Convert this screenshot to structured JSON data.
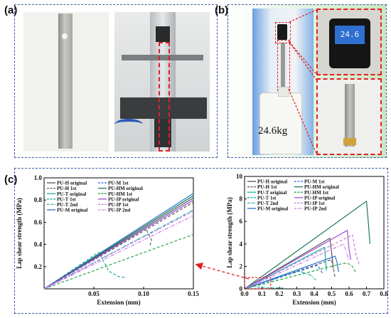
{
  "panel_labels": {
    "a": "(a)",
    "b": "(b)",
    "c": "(c)"
  },
  "panel_b": {
    "weight_label": "24.6kg",
    "scale_display": "24.6"
  },
  "colors": {
    "frame": "#3a58a8",
    "highlight": "#e02020",
    "arrow": "#e02020"
  },
  "chart_data": [
    {
      "type": "line",
      "xlabel": "Extension (mm)",
      "ylabel": "Lap shear strength (MPa)",
      "xlim": [
        0,
        0.15
      ],
      "ylim": [
        0,
        1.0
      ],
      "xticks": [
        0.05,
        0.1,
        0.15
      ],
      "yticks": [
        0.2,
        0.4,
        0.6,
        0.8,
        1.0
      ],
      "legend_position": "top-left",
      "series": [
        {
          "name": "PU-H original",
          "color": "#555555",
          "dash": "solid",
          "x": [
            0,
            0.15
          ],
          "y": [
            0,
            0.82
          ]
        },
        {
          "name": "PU-H 1st",
          "color": "#555555",
          "dash": "dashed",
          "x": [
            0,
            0.15
          ],
          "y": [
            0,
            0.78
          ]
        },
        {
          "name": "PU-T original",
          "color": "#19b0a0",
          "dash": "solid",
          "x": [
            0,
            0.15
          ],
          "y": [
            0,
            0.84
          ]
        },
        {
          "name": "PU-T 1st",
          "color": "#19b0a0",
          "dash": "dashed",
          "x": [
            0,
            0.055,
            0.065,
            0.075,
            0.083
          ],
          "y": [
            0,
            0.33,
            0.16,
            0.11,
            0.1
          ]
        },
        {
          "name": "PU-T 2nd",
          "color": "#19b0a0",
          "dash": "dashdot",
          "x": [
            0,
            0.15
          ],
          "y": [
            0,
            0.71
          ]
        },
        {
          "name": "PU-M original",
          "color": "#2a6fd6",
          "dash": "solid",
          "x": [
            0,
            0.15
          ],
          "y": [
            0,
            0.86
          ]
        },
        {
          "name": "PU-M 1st",
          "color": "#2a6fd6",
          "dash": "dashed",
          "x": [
            0,
            0.15
          ],
          "y": [
            0,
            0.8
          ]
        },
        {
          "name": "PU-HM original",
          "color": "#1e7a5a",
          "dash": "solid",
          "x": [
            0,
            0.15
          ],
          "y": [
            0,
            0.84
          ]
        },
        {
          "name": "PU-HM 1st",
          "color": "#2aa84a",
          "dash": "dashed",
          "x": [
            0,
            0.15
          ],
          "y": [
            0,
            0.49
          ]
        },
        {
          "name": "PU-IP original",
          "color": "#a04bd6",
          "dash": "solid",
          "x": [
            0,
            0.15
          ],
          "y": [
            0,
            0.8
          ]
        },
        {
          "name": "PU-IP 1st",
          "color": "#c77be6",
          "dash": "dashed",
          "x": [
            0,
            0.15
          ],
          "y": [
            0,
            0.7
          ]
        },
        {
          "name": "PU-IP 2nd",
          "color": "#c77be6",
          "dash": "dashdot",
          "x": [
            0,
            0.15
          ],
          "y": [
            0,
            0.66
          ]
        }
      ],
      "annotations": [
        {
          "series": "PU-H 1st",
          "x": [
            0.103,
            0.108,
            0.106
          ],
          "y": [
            0.53,
            0.44,
            0.38
          ]
        }
      ]
    },
    {
      "type": "line",
      "xlabel": "Extension (mm)",
      "ylabel": "Lap shear strength (MPa)",
      "xlim": [
        0,
        0.8
      ],
      "ylim": [
        0,
        10
      ],
      "xticks": [
        0.0,
        0.1,
        0.2,
        0.3,
        0.4,
        0.5,
        0.6,
        0.7,
        0.8
      ],
      "yticks": [
        0,
        2,
        4,
        6,
        8,
        10
      ],
      "legend_position": "top-left",
      "series": [
        {
          "name": "PU-H original",
          "color": "#555555",
          "dash": "solid",
          "x": [
            0,
            0.49,
            0.5,
            0.51
          ],
          "y": [
            0,
            4.5,
            3.2,
            1.8
          ]
        },
        {
          "name": "PU-H 1st",
          "color": "#555555",
          "dash": "dashed",
          "x": [
            0,
            0.5,
            0.52
          ],
          "y": [
            0,
            2.6,
            1.0
          ]
        },
        {
          "name": "PU-T original",
          "color": "#19b0a0",
          "dash": "solid",
          "x": [
            0,
            0.46,
            0.47
          ],
          "y": [
            0,
            3.7,
            1.6
          ]
        },
        {
          "name": "PU-T 1st",
          "color": "#19b0a0",
          "dash": "dashed",
          "x": [
            0,
            0.056,
            0.08,
            0.11,
            0.14,
            0.17,
            0.2,
            0.23
          ],
          "y": [
            0,
            0.33,
            0.15,
            0.1,
            0.08,
            0.08,
            0.07,
            0.07
          ]
        },
        {
          "name": "PU-T 2nd",
          "color": "#19b0a0",
          "dash": "dashdot",
          "x": [
            0,
            0.25,
            0.31,
            0.38,
            0.41
          ],
          "y": [
            0,
            1.3,
            1.6,
            1.2,
            0.8
          ]
        },
        {
          "name": "PU-M original",
          "color": "#2a6fd6",
          "dash": "solid",
          "x": [
            0,
            0.52,
            0.53,
            0.54
          ],
          "y": [
            0,
            2.9,
            2.4,
            1.5
          ]
        },
        {
          "name": "PU-M 1st",
          "color": "#2a6fd6",
          "dash": "dashed",
          "x": [
            0,
            0.42,
            0.45
          ],
          "y": [
            0,
            2.1,
            1.3
          ]
        },
        {
          "name": "PU-HM original",
          "color": "#1e7a5a",
          "dash": "solid",
          "x": [
            0,
            0.7,
            0.71,
            0.72
          ],
          "y": [
            0,
            7.8,
            6.0,
            4.0
          ]
        },
        {
          "name": "PU-HM 1st",
          "color": "#2aa84a",
          "dash": "dashed",
          "x": [
            0,
            0.55,
            0.59,
            0.62,
            0.64
          ],
          "y": [
            0,
            2.2,
            2.3,
            2.0,
            1.4
          ]
        },
        {
          "name": "PU-IP original",
          "color": "#a04bd6",
          "dash": "solid",
          "x": [
            0,
            0.59,
            0.6,
            0.61
          ],
          "y": [
            0,
            5.2,
            3.5,
            2.6
          ]
        },
        {
          "name": "PU-IP 1st",
          "color": "#c77be6",
          "dash": "dashed",
          "x": [
            0,
            0.62,
            0.64,
            0.66
          ],
          "y": [
            0,
            4.8,
            3.0,
            2.1
          ]
        },
        {
          "name": "PU-IP 2nd",
          "color": "#c77be6",
          "dash": "dashdot",
          "x": [
            0,
            0.57,
            0.6
          ],
          "y": [
            0,
            4.0,
            2.5
          ]
        }
      ],
      "zoom_box": {
        "x": [
          0,
          0.15
        ],
        "y": [
          0,
          1
        ]
      }
    }
  ]
}
